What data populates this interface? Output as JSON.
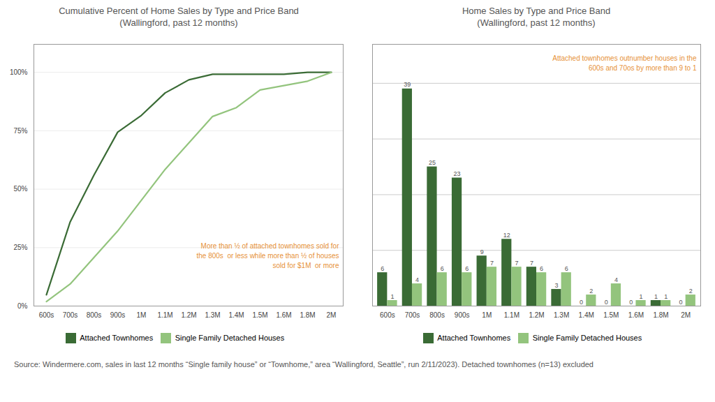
{
  "chart_data": [
    {
      "type": "line",
      "title": "Cumulative Percent of Home Sales by Type and Price Band\n(Wallingford, past 12 months)",
      "categories": [
        "600s",
        "700s",
        "800s",
        "900s",
        "1M",
        "1.1M",
        "1.2M",
        "1.3M",
        "1.4M",
        "1.5M",
        "1.6M",
        "1.8M",
        "2M"
      ],
      "series": [
        {
          "name": "Attached Townhomes",
          "color": "#3a6b35",
          "values": [
            4.8,
            36,
            56,
            74.4,
            81.6,
            91.2,
            96.8,
            99.2,
            99.2,
            99.2,
            99.2,
            100,
            100
          ]
        },
        {
          "name": "Single Family Detached Houses",
          "color": "#93c47d",
          "values": [
            1.88679245283,
            9.433962264151,
            20.754716981132,
            32.075471698113,
            45.283018867925,
            58.490566037736,
            69.811320754717,
            81.132075471698,
            84.905660377358,
            92.452830188679,
            94.339622641509,
            96.22641509434,
            100
          ]
        }
      ],
      "ylim": [
        0,
        112
      ],
      "yticks": [
        {
          "value": 0,
          "label": "0%"
        },
        {
          "value": 25,
          "label": "25%"
        },
        {
          "value": 50,
          "label": "50%"
        },
        {
          "value": 75,
          "label": "75%"
        },
        {
          "value": 100,
          "label": "100%"
        }
      ],
      "grid": true,
      "legend": "bottom",
      "annotations": [
        "More than ½ of attached townhomes sold for\nthe 800s  or less while more than ½ of houses\nsold for $1M  or more"
      ]
    },
    {
      "type": "bar",
      "title": "Home Sales by Type and Price Band\n(Wallingford, past 12 months)",
      "categories": [
        "600s",
        "700s",
        "800s",
        "900s",
        "1M",
        "1.1M",
        "1.2M",
        "1.3M",
        "1.4M",
        "1.5M",
        "1.6M",
        "1.8M",
        "2M"
      ],
      "series": [
        {
          "name": "Attached Townhomes",
          "color": "#3a6b35",
          "values": [
            6,
            39,
            25,
            23,
            9,
            12,
            7,
            3,
            0,
            0,
            0,
            1,
            0
          ]
        },
        {
          "name": "Single Family Detached Houses",
          "color": "#93c47d",
          "values": [
            1,
            4,
            6,
            6,
            7,
            7,
            6,
            6,
            2,
            4,
            1,
            1,
            2
          ]
        }
      ],
      "ylim": [
        0,
        47
      ],
      "yticks": [
        10,
        20,
        30,
        40
      ],
      "grid": true,
      "tick_labels": "x",
      "data_labels": true,
      "legend": "bottom",
      "annotations": [
        "Attached townhomes outnumber houses in the\n600s and 70os by more than 9 to 1"
      ],
      "caption": "Source:  Windermere.com,  sales in last 12 months “Single family house” or “Townhome,”  area “Wallingford, Seattle”, run 2/11/2023).  Detached townhomes  (n=13) excluded"
    }
  ]
}
